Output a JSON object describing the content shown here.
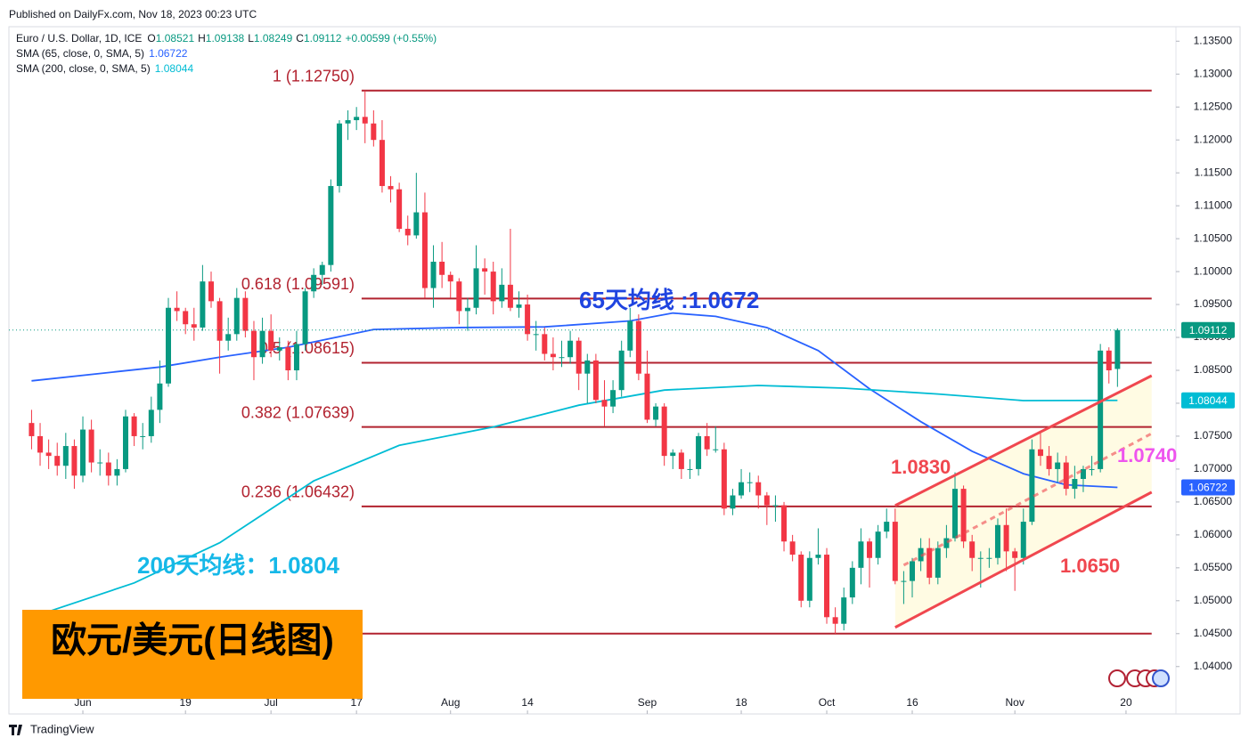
{
  "published": "Published on DailyFx.com, Nov 18, 2023 00:23 UTC",
  "footer": "TradingView",
  "chart_data": {
    "type": "candlestick",
    "symbol": "Euro / U.S. Dollar, 1D, ICE",
    "ohlc_prefixes": [
      "O",
      "H",
      "L",
      "C"
    ],
    "change": "+0.00599 (+0.55%)",
    "up_color": "#089981",
    "down_color": "#f23645",
    "candles": [
      [
        1.077,
        1.079,
        1.073,
        1.075
      ],
      [
        1.075,
        1.077,
        1.0705,
        1.0725
      ],
      [
        1.0725,
        1.0745,
        1.07,
        1.072
      ],
      [
        1.072,
        1.074,
        1.069,
        1.0705
      ],
      [
        1.0705,
        1.0755,
        1.0685,
        1.0735
      ],
      [
        1.0735,
        1.0745,
        1.067,
        1.069
      ],
      [
        1.069,
        1.078,
        1.068,
        1.076
      ],
      [
        1.076,
        1.0775,
        1.0695,
        1.071
      ],
      [
        1.071,
        1.073,
        1.069,
        1.071
      ],
      [
        1.071,
        1.0725,
        1.0675,
        1.069
      ],
      [
        1.069,
        1.0715,
        1.0675,
        1.07
      ],
      [
        1.07,
        1.079,
        1.0695,
        1.078
      ],
      [
        1.078,
        1.0785,
        1.0735,
        1.075
      ],
      [
        1.075,
        1.077,
        1.073,
        1.075
      ],
      [
        1.075,
        1.081,
        1.074,
        1.079
      ],
      [
        1.079,
        1.0865,
        1.077,
        1.083
      ],
      [
        1.083,
        1.096,
        1.0825,
        1.0945
      ],
      [
        1.0945,
        1.097,
        1.0925,
        1.094
      ],
      [
        1.094,
        1.0945,
        1.0905,
        1.092
      ],
      [
        1.092,
        1.0945,
        1.0895,
        1.0915
      ],
      [
        1.0915,
        1.101,
        1.091,
        1.0985
      ],
      [
        1.0985,
        1.1,
        1.0945,
        1.0955
      ],
      [
        1.0955,
        1.096,
        1.0845,
        1.0895
      ],
      [
        1.0895,
        1.093,
        1.088,
        1.0905
      ],
      [
        1.0905,
        1.0975,
        1.0895,
        1.096
      ],
      [
        1.096,
        1.097,
        1.09,
        1.091
      ],
      [
        1.091,
        1.0925,
        1.0835,
        1.087
      ],
      [
        1.087,
        1.093,
        1.086,
        1.091
      ],
      [
        1.091,
        1.0935,
        1.087,
        1.088
      ],
      [
        1.088,
        1.09,
        1.0865,
        1.0885
      ],
      [
        1.0885,
        1.0895,
        1.0835,
        1.085
      ],
      [
        1.085,
        1.091,
        1.0835,
        1.089
      ],
      [
        1.089,
        1.0975,
        1.088,
        1.097
      ],
      [
        1.097,
        1.1005,
        1.096,
        1.0995
      ],
      [
        1.0995,
        1.1015,
        1.098,
        1.101
      ],
      [
        1.101,
        1.114,
        1.1,
        1.113
      ],
      [
        1.113,
        1.123,
        1.112,
        1.1225
      ],
      [
        1.1225,
        1.1245,
        1.12,
        1.123
      ],
      [
        1.123,
        1.125,
        1.1215,
        1.1235
      ],
      [
        1.1235,
        1.1275,
        1.1195,
        1.1225
      ],
      [
        1.1225,
        1.1245,
        1.119,
        1.12
      ],
      [
        1.12,
        1.123,
        1.112,
        1.113
      ],
      [
        1.113,
        1.1145,
        1.1105,
        1.1125
      ],
      [
        1.1125,
        1.1135,
        1.106,
        1.1065
      ],
      [
        1.1065,
        1.1085,
        1.104,
        1.1055
      ],
      [
        1.1055,
        1.115,
        1.105,
        1.109
      ],
      [
        1.109,
        1.112,
        1.096,
        1.0975
      ],
      [
        1.0975,
        1.104,
        1.0945,
        1.1015
      ],
      [
        1.1015,
        1.1045,
        1.0975,
        1.0995
      ],
      [
        1.0995,
        1.1,
        1.096,
        1.0985
      ],
      [
        1.0985,
        1.099,
        1.092,
        1.094
      ],
      [
        1.094,
        1.096,
        1.091,
        1.0945
      ],
      [
        1.0945,
        1.104,
        1.0935,
        1.1005
      ],
      [
        1.1005,
        1.102,
        1.0965,
        1.1
      ],
      [
        1.1,
        1.1015,
        1.0935,
        1.0955
      ],
      [
        1.0955,
        1.1005,
        1.0945,
        1.098
      ],
      [
        1.098,
        1.1065,
        1.094,
        1.0945
      ],
      [
        1.0945,
        1.097,
        1.093,
        1.095
      ],
      [
        1.095,
        1.0965,
        1.0895,
        1.0905
      ],
      [
        1.0905,
        1.0925,
        1.088,
        1.0905
      ],
      [
        1.0905,
        1.0915,
        1.0865,
        1.0875
      ],
      [
        1.0875,
        1.09,
        1.085,
        1.087
      ],
      [
        1.087,
        1.0895,
        1.0855,
        1.087
      ],
      [
        1.087,
        1.091,
        1.086,
        1.0895
      ],
      [
        1.0895,
        1.09,
        1.082,
        1.0845
      ],
      [
        1.0845,
        1.0875,
        1.08,
        1.0865
      ],
      [
        1.0865,
        1.0875,
        1.08,
        1.0805
      ],
      [
        1.0805,
        1.0835,
        1.0765,
        1.0795
      ],
      [
        1.0795,
        1.0835,
        1.0785,
        1.082
      ],
      [
        1.082,
        1.0895,
        1.081,
        1.088
      ],
      [
        1.088,
        1.0945,
        1.087,
        1.0925
      ],
      [
        1.0925,
        1.0935,
        1.0835,
        1.0845
      ],
      [
        1.0845,
        1.088,
        1.077,
        1.0775
      ],
      [
        1.0775,
        1.08,
        1.0765,
        1.0795
      ],
      [
        1.0795,
        1.08,
        1.0705,
        1.072
      ],
      [
        1.072,
        1.073,
        1.07,
        1.0725
      ],
      [
        1.0725,
        1.073,
        1.0685,
        1.07
      ],
      [
        1.07,
        1.0715,
        1.0685,
        1.07
      ],
      [
        1.07,
        1.0755,
        1.069,
        1.075
      ],
      [
        1.075,
        1.077,
        1.072,
        1.073
      ],
      [
        1.073,
        1.0765,
        1.0725,
        1.073
      ],
      [
        1.073,
        1.074,
        1.063,
        1.064
      ],
      [
        1.064,
        1.067,
        1.063,
        1.066
      ],
      [
        1.066,
        1.07,
        1.0655,
        1.068
      ],
      [
        1.068,
        1.0695,
        1.0665,
        1.068
      ],
      [
        1.068,
        1.069,
        1.064,
        1.066
      ],
      [
        1.066,
        1.0665,
        1.0615,
        1.0645
      ],
      [
        1.0645,
        1.066,
        1.062,
        1.0645
      ],
      [
        1.0645,
        1.065,
        1.0575,
        1.059
      ],
      [
        1.059,
        1.06,
        1.056,
        1.057
      ],
      [
        1.057,
        1.0575,
        1.049,
        1.05
      ],
      [
        1.05,
        1.0575,
        1.049,
        1.0565
      ],
      [
        1.0565,
        1.061,
        1.0555,
        1.057
      ],
      [
        1.057,
        1.058,
        1.0465,
        1.0475
      ],
      [
        1.0475,
        1.049,
        1.045,
        1.0465
      ],
      [
        1.0465,
        1.052,
        1.0455,
        1.0505
      ],
      [
        1.0505,
        1.056,
        1.0495,
        1.055
      ],
      [
        1.055,
        1.061,
        1.0525,
        1.059
      ],
      [
        1.059,
        1.0595,
        1.052,
        1.0565
      ],
      [
        1.0565,
        1.0615,
        1.0555,
        1.0605
      ],
      [
        1.0605,
        1.064,
        1.0595,
        1.062
      ],
      [
        1.062,
        1.064,
        1.0525,
        1.053
      ],
      [
        1.053,
        1.0545,
        1.0495,
        1.053
      ],
      [
        1.053,
        1.0565,
        1.0505,
        1.056
      ],
      [
        1.056,
        1.0595,
        1.0545,
        1.058
      ],
      [
        1.058,
        1.0595,
        1.0525,
        1.0535
      ],
      [
        1.0535,
        1.059,
        1.0525,
        1.058
      ],
      [
        1.058,
        1.0615,
        1.0565,
        1.0595
      ],
      [
        1.0595,
        1.0695,
        1.059,
        1.067
      ],
      [
        1.067,
        1.0675,
        1.058,
        1.059
      ],
      [
        1.059,
        1.06,
        1.0545,
        1.0565
      ],
      [
        1.0565,
        1.0575,
        1.052,
        1.0565
      ],
      [
        1.0565,
        1.058,
        1.055,
        1.0565
      ],
      [
        1.0565,
        1.0625,
        1.0555,
        1.0615
      ],
      [
        1.0615,
        1.064,
        1.0545,
        1.0575
      ],
      [
        1.0575,
        1.058,
        1.0515,
        1.0565
      ],
      [
        1.0565,
        1.064,
        1.0555,
        1.062
      ],
      [
        1.062,
        1.0745,
        1.0615,
        1.073
      ],
      [
        1.073,
        1.0755,
        1.0705,
        1.072
      ],
      [
        1.072,
        1.0735,
        1.069,
        1.07
      ],
      [
        1.07,
        1.0725,
        1.068,
        1.071
      ],
      [
        1.071,
        1.072,
        1.066,
        1.067
      ],
      [
        1.067,
        1.0705,
        1.0655,
        1.0685
      ],
      [
        1.0685,
        1.0705,
        1.0665,
        1.07
      ],
      [
        1.07,
        1.072,
        1.069,
        1.07
      ],
      [
        1.07,
        1.089,
        1.0695,
        1.088
      ],
      [
        1.088,
        1.0885,
        1.083,
        1.085
      ],
      [
        1.08521,
        1.09138,
        1.08249,
        1.09112
      ]
    ],
    "xlim": [
      -2.65,
      133.84
    ],
    "xticks": [
      {
        "value": 6,
        "label": "Jun"
      },
      {
        "value": 18,
        "label": "19"
      },
      {
        "value": 28,
        "label": "Jul"
      },
      {
        "value": 38,
        "label": "17"
      },
      {
        "value": 49,
        "label": "Aug"
      },
      {
        "value": 58,
        "label": "14"
      },
      {
        "value": 72,
        "label": "Sep"
      },
      {
        "value": 83,
        "label": "18"
      },
      {
        "value": 93,
        "label": "Oct"
      },
      {
        "value": 103,
        "label": "16"
      },
      {
        "value": 115,
        "label": "Nov"
      },
      {
        "value": 128,
        "label": "20"
      }
    ],
    "ylim": [
      1.0328,
      1.1372
    ],
    "yticks": [
      {
        "value": 1.135,
        "label": "1.13500"
      },
      {
        "value": 1.13,
        "label": "1.13000"
      },
      {
        "value": 1.125,
        "label": "1.12500"
      },
      {
        "value": 1.12,
        "label": "1.12000"
      },
      {
        "value": 1.115,
        "label": "1.11500"
      },
      {
        "value": 1.11,
        "label": "1.11000"
      },
      {
        "value": 1.105,
        "label": "1.10500"
      },
      {
        "value": 1.1,
        "label": "1.10000"
      },
      {
        "value": 1.095,
        "label": "1.09500"
      },
      {
        "value": 1.09,
        "label": "1.09000"
      },
      {
        "value": 1.085,
        "label": "1.08500"
      },
      {
        "value": 1.08,
        "label": "1.08000"
      },
      {
        "value": 1.075,
        "label": "1.07500"
      },
      {
        "value": 1.07,
        "label": "1.07000"
      },
      {
        "value": 1.065,
        "label": "1.06500"
      },
      {
        "value": 1.06,
        "label": "1.06000"
      },
      {
        "value": 1.055,
        "label": "1.05500"
      },
      {
        "value": 1.05,
        "label": "1.05000"
      },
      {
        "value": 1.045,
        "label": "1.04500"
      },
      {
        "value": 1.04,
        "label": "1.04000"
      }
    ],
    "series": [
      {
        "name": "SMA (65, close, 0, SMA, 5)",
        "color": "#2962ff",
        "x": [
          0,
          15,
          22,
          30,
          40,
          50,
          60,
          70,
          75,
          80,
          86,
          92,
          98,
          104,
          110,
          116,
          121,
          127
        ],
        "values": [
          1.0834,
          1.0855,
          1.087,
          1.0885,
          1.0912,
          1.0915,
          1.0916,
          1.0925,
          1.0937,
          1.0932,
          1.0915,
          1.088,
          1.0822,
          1.0772,
          1.0727,
          1.0693,
          1.0676,
          1.06722
        ]
      },
      {
        "name": "SMA (200, close, 0, SMA, 5)",
        "color": "#00bcd4",
        "x": [
          0,
          12,
          22,
          33,
          43,
          54,
          64,
          74,
          85,
          95,
          106,
          116,
          127
        ],
        "values": [
          1.0475,
          1.0527,
          1.0588,
          1.0682,
          1.0736,
          1.0764,
          1.0797,
          1.082,
          1.0827,
          1.0823,
          1.0814,
          1.0804,
          1.08044
        ]
      }
    ],
    "fib_color": "#b2222f",
    "fib_levels": [
      {
        "label": "1 (1.12750)",
        "value": 1.1275
      },
      {
        "label": "0.618 (1.09591)",
        "value": 1.09591
      },
      {
        "label": "0.5 (1.08615)",
        "value": 1.08615
      },
      {
        "label": "0.382 (1.07639)",
        "value": 1.07639
      },
      {
        "label": "0.236 (1.06432)",
        "value": 1.06432
      },
      {
        "value": 1.045
      }
    ],
    "fib_x": [
      38.6,
      131
    ],
    "channel_color": "#f0474f",
    "channel": {
      "upper": {
        "x": [
          101,
          131
        ],
        "values": [
          1.06446,
          1.08419
        ]
      },
      "lower": {
        "x": [
          101,
          131
        ],
        "values": [
          1.04595,
          1.06649
        ]
      },
      "middle": {
        "x": [
          102,
          131
        ],
        "values": [
          1.0554,
          1.0754
        ]
      }
    },
    "annotations": [
      {
        "text": "1.0830",
        "color": "#f0474f"
      },
      {
        "text": "1.0740",
        "color": "#ee55ee"
      },
      {
        "text": "1.0650",
        "color": "#f0474f"
      },
      {
        "text": "65天均线 :1.0672",
        "color": "#1f44e0"
      },
      {
        "text": "200天均线：1.0804",
        "color": "#16b8e8"
      }
    ],
    "title": "欧元/美元(日线图)"
  }
}
